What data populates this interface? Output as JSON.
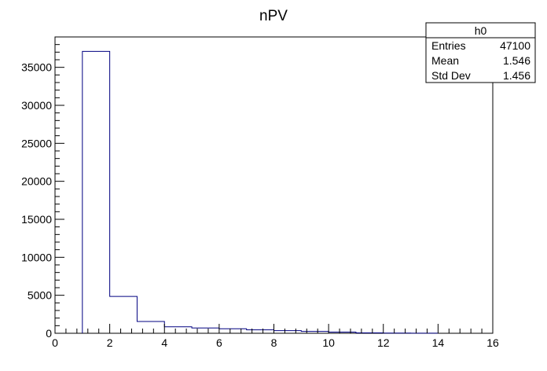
{
  "chart_data": {
    "type": "bar",
    "title": "nPV",
    "xlabel": "",
    "ylabel": "",
    "xlim": [
      0,
      16
    ],
    "ylim": [
      0,
      39000
    ],
    "x_ticks": [
      "0",
      "2",
      "4",
      "6",
      "8",
      "10",
      "12",
      "14",
      "16"
    ],
    "y_ticks": [
      "0",
      "5000",
      "10000",
      "15000",
      "20000",
      "25000",
      "30000",
      "35000"
    ],
    "bins": [
      {
        "x0": 1,
        "x1": 2,
        "value": 37100
      },
      {
        "x0": 2,
        "x1": 3,
        "value": 4850
      },
      {
        "x0": 3,
        "x1": 4,
        "value": 1550
      },
      {
        "x0": 4,
        "x1": 5,
        "value": 850
      },
      {
        "x0": 5,
        "x1": 6,
        "value": 700
      },
      {
        "x0": 6,
        "x1": 7,
        "value": 600
      },
      {
        "x0": 7,
        "x1": 8,
        "value": 450
      },
      {
        "x0": 8,
        "x1": 9,
        "value": 350
      },
      {
        "x0": 9,
        "x1": 10,
        "value": 250
      },
      {
        "x0": 10,
        "x1": 11,
        "value": 150
      },
      {
        "x0": 11,
        "x1": 12,
        "value": 50
      },
      {
        "x0": 12,
        "x1": 13,
        "value": 20
      },
      {
        "x0": 13,
        "x1": 14,
        "value": 10
      }
    ],
    "line_color": "#000080",
    "stats_box": {
      "name": "h0",
      "rows": [
        {
          "label": "Entries",
          "value": "47100"
        },
        {
          "label": "Mean",
          "value": "1.546"
        },
        {
          "label": "Std Dev",
          "value": "1.456"
        }
      ]
    }
  }
}
